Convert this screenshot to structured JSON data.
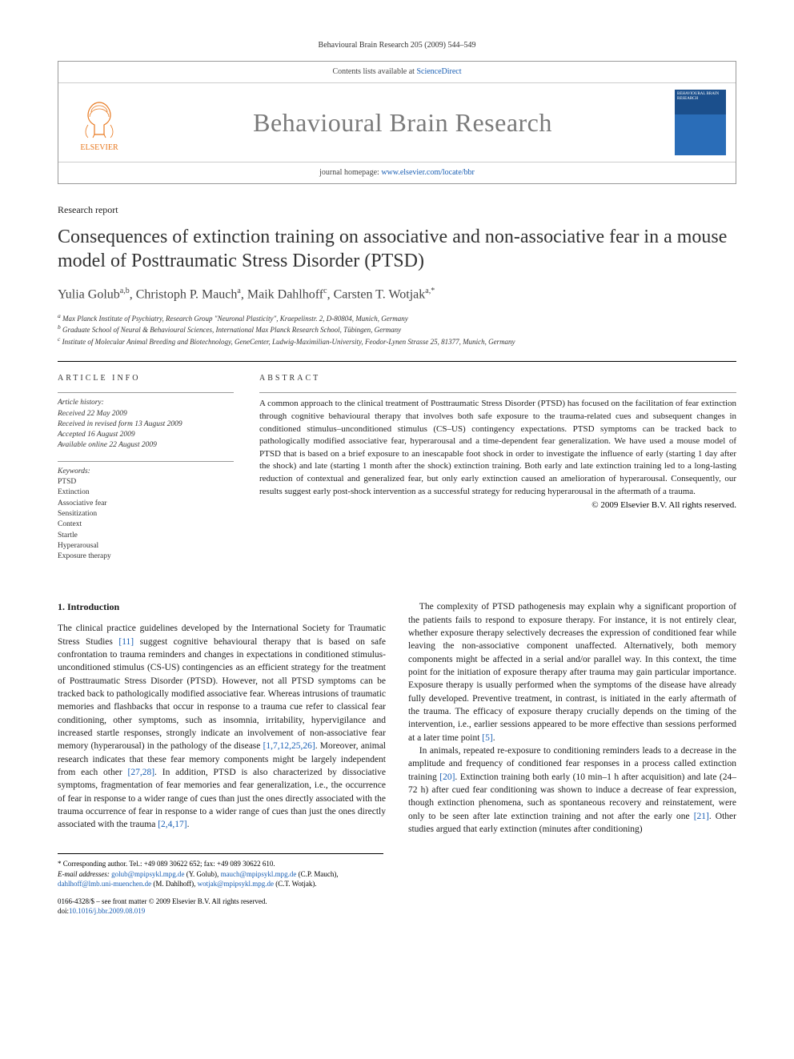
{
  "running_head": "Behavioural Brain Research 205 (2009) 544–549",
  "masthead": {
    "contents_line_prefix": "Contents lists available at ",
    "contents_link": "ScienceDirect",
    "journal": "Behavioural Brain Research",
    "homepage_prefix": "journal homepage: ",
    "homepage_url": "www.elsevier.com/locate/bbr",
    "publisher": "ELSEVIER",
    "cover_text": "BEHAVIOURAL BRAIN RESEARCH"
  },
  "article_type": "Research report",
  "title": "Consequences of extinction training on associative and non-associative fear in a mouse model of Posttraumatic Stress Disorder (PTSD)",
  "authors_html": "Yulia Golub<sup>a,b</sup>, Christoph P. Mauch<sup>a</sup>, Maik Dahlhoff<sup>c</sup>, Carsten T. Wotjak<sup>a,*</sup>",
  "affiliations": [
    "a Max Planck Institute of Psychiatry, Research Group \"Neuronal Plasticity\", Kraepelinstr. 2, D-80804, Munich, Germany",
    "b Graduate School of Neural & Behavioural Sciences, International Max Planck Research School, Tübingen, Germany",
    "c Institute of Molecular Animal Breeding and Biotechnology, GeneCenter, Ludwig-Maximilian-University, Feodor-Lynen Strasse 25, 81377, Munich, Germany"
  ],
  "info": {
    "hdr": "ARTICLE INFO",
    "history_label": "Article history:",
    "history": [
      "Received 22 May 2009",
      "Received in revised form 13 August 2009",
      "Accepted 16 August 2009",
      "Available online 22 August 2009"
    ],
    "keywords_label": "Keywords:",
    "keywords": [
      "PTSD",
      "Extinction",
      "Associative fear",
      "Sensitization",
      "Context",
      "Startle",
      "Hyperarousal",
      "Exposure therapy"
    ]
  },
  "abstract": {
    "hdr": "ABSTRACT",
    "text": "A common approach to the clinical treatment of Posttraumatic Stress Disorder (PTSD) has focused on the facilitation of fear extinction through cognitive behavioural therapy that involves both safe exposure to the trauma-related cues and subsequent changes in conditioned stimulus–unconditioned stimulus (CS–US) contingency expectations. PTSD symptoms can be tracked back to pathologically modified associative fear, hyperarousal and a time-dependent fear generalization. We have used a mouse model of PTSD that is based on a brief exposure to an inescapable foot shock in order to investigate the influence of early (starting 1 day after the shock) and late (starting 1 month after the shock) extinction training. Both early and late extinction training led to a long-lasting reduction of contextual and generalized fear, but only early extinction caused an amelioration of hyperarousal. Consequently, our results suggest early post-shock intervention as a successful strategy for reducing hyperarousal in the aftermath of a trauma.",
    "copyright": "© 2009 Elsevier B.V. All rights reserved."
  },
  "section1": {
    "head": "1. Introduction",
    "p1a": "The clinical practice guidelines developed by the International Society for Traumatic Stress Studies ",
    "p1cite1": "[11]",
    "p1b": " suggest cognitive behavioural therapy that is based on safe confrontation to trauma reminders and changes in expectations in conditioned stimulus-unconditioned stimulus (CS-US) contingencies as an efficient strategy for the treatment of Posttraumatic Stress Disorder (PTSD). However, not all PTSD symptoms can be tracked back to pathologically modified associative fear. Whereas intrusions of traumatic memories and flashbacks that occur in response to a trauma cue refer to classical fear conditioning, other symptoms, such as insomnia, irritability, hypervigilance and increased startle responses, strongly indicate an involvement of non-associative fear memory (hyperarousal) in the pathology of the disease ",
    "p1cite2": "[1,7,12,25,26]",
    "p1c": ". Moreover, animal research indicates that these fear memory components might be largely independent from each other ",
    "p1cite3": "[27,28]",
    "p1d": ". In addition, PTSD is also characterized by dissociative symptoms, fragmentation of fear memories and fear generalization, i.e., the occurrence of fear in response to a wider range of cues than just the ones directly associated with the trauma ",
    "p1cite4": "[2,4,17]",
    "p1e": ".",
    "p2": "The complexity of PTSD pathogenesis may explain why a significant proportion of the patients fails to respond to exposure therapy. For instance, it is not entirely clear, whether exposure therapy selectively decreases the expression of conditioned fear while leaving the non-associative component unaffected. Alternatively, both memory components might be affected in a serial and/or parallel way. In this context, the time point for the initiation of exposure therapy after trauma may gain particular importance. Exposure therapy is usually performed when the symptoms of the disease have already fully developed. Preventive treatment, in contrast, is initiated in the early aftermath of the trauma. The efficacy of exposure therapy crucially depends on the timing of the intervention, i.e., earlier sessions appeared to be more effective than sessions performed at a later time point ",
    "p2cite1": "[5]",
    "p2b": ".",
    "p3a": "In animals, repeated re-exposure to conditioning reminders leads to a decrease in the amplitude and frequency of conditioned fear responses in a process called extinction training ",
    "p3cite1": "[20]",
    "p3b": ". Extinction training both early (10 min–1 h after acquisition) and late (24–72 h) after cued fear conditioning was shown to induce a decrease of fear expression, though extinction phenomena, such as spontaneous recovery and reinstatement, were only to be seen after late extinction training and not after the early one ",
    "p3cite2": "[21]",
    "p3c": ". Other studies argued that early extinction (minutes after conditioning)"
  },
  "footnotes": {
    "corr_label": "* Corresponding author. Tel.: +49 089 30622 652; fax: +49 089 30622 610.",
    "email_label": "E-mail addresses: ",
    "emails": [
      {
        "addr": "golub@mpipsykl.mpg.de",
        "who": " (Y. Golub), "
      },
      {
        "addr": "mauch@mpipsykl.mpg.de",
        "who": " (C.P. Mauch), "
      },
      {
        "addr": "dahlhoff@lmb.uni-muenchen.de",
        "who": " (M. Dahlhoff), "
      },
      {
        "addr": "wotjak@mpipsykl.mpg.de",
        "who": " (C.T. Wotjak)."
      }
    ]
  },
  "copyright_footer": {
    "line1": "0166-4328/$ – see front matter © 2009 Elsevier B.V. All rights reserved.",
    "doi_prefix": "doi:",
    "doi": "10.1016/j.bbr.2009.08.019"
  },
  "colors": {
    "link": "#1a5fb4",
    "elsevier_orange": "#e8781e",
    "journal_grey": "#7a7a7a",
    "cover_top": "#1b4f8c",
    "cover_bot": "#2a6db8"
  }
}
